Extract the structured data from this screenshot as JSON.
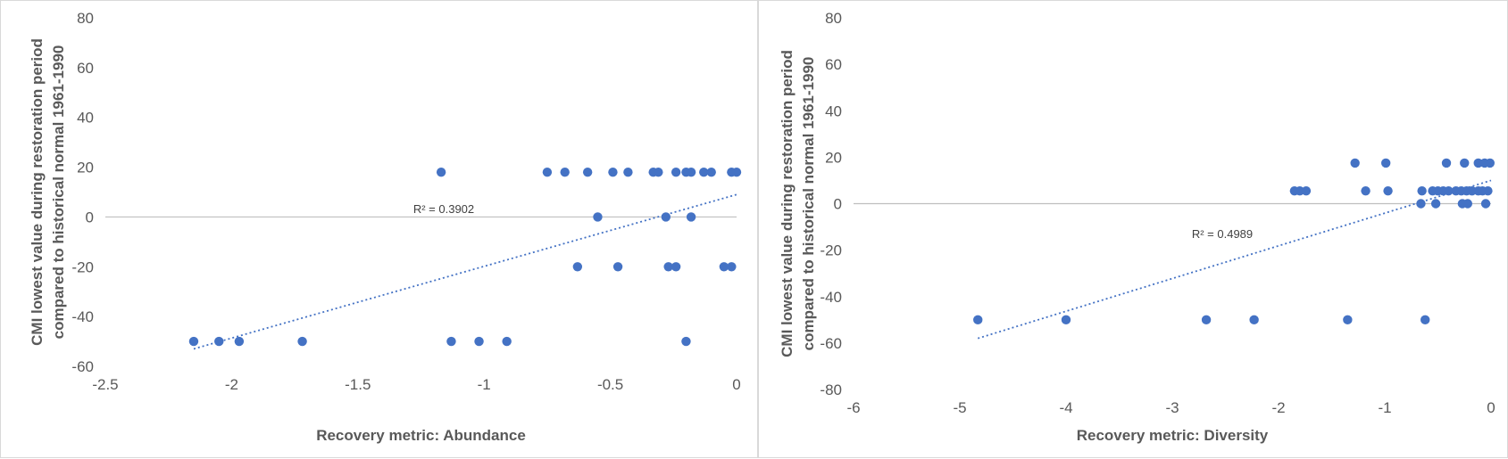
{
  "chart_data": [
    {
      "type": "scatter",
      "title": "",
      "xlabel": "Recovery metric: Abundance",
      "ylabel": "CMI lowest value during restoration period compared to historical normal 1961-1990",
      "xlim": [
        -2.5,
        0
      ],
      "ylim": [
        -60,
        80
      ],
      "xticks": [
        -2.5,
        -2,
        -1.5,
        -1,
        -0.5,
        0
      ],
      "yticks": [
        -60,
        -40,
        -20,
        0,
        20,
        40,
        60,
        80
      ],
      "x_tick_labels": [
        "-2.5",
        "-2",
        "-1.5",
        "-1",
        "-0.5",
        "0"
      ],
      "y_tick_labels": [
        "-60",
        "-40",
        "-20",
        "0",
        "20",
        "40",
        "60",
        "80"
      ],
      "grid": "horizontal zero line only",
      "marker_color": "#4472c4",
      "trendline": {
        "type": "linear",
        "style": "dotted",
        "color": "#4472c4",
        "x_range": [
          -2.15,
          0
        ],
        "y_range": [
          -53,
          9
        ]
      },
      "annotation": "R² = 0.3902",
      "points": [
        {
          "x": -2.15,
          "y": -50
        },
        {
          "x": -2.05,
          "y": -50
        },
        {
          "x": -1.97,
          "y": -50
        },
        {
          "x": -1.72,
          "y": -50
        },
        {
          "x": -1.13,
          "y": -50
        },
        {
          "x": -1.02,
          "y": -50
        },
        {
          "x": -0.91,
          "y": -50
        },
        {
          "x": -0.2,
          "y": -50
        },
        {
          "x": -1.17,
          "y": 18
        },
        {
          "x": -0.75,
          "y": 18
        },
        {
          "x": -0.68,
          "y": 18
        },
        {
          "x": -0.59,
          "y": 18
        },
        {
          "x": -0.49,
          "y": 18
        },
        {
          "x": -0.43,
          "y": 18
        },
        {
          "x": -0.33,
          "y": 18
        },
        {
          "x": -0.31,
          "y": 18
        },
        {
          "x": -0.24,
          "y": 18
        },
        {
          "x": -0.2,
          "y": 18
        },
        {
          "x": -0.18,
          "y": 18
        },
        {
          "x": -0.13,
          "y": 18
        },
        {
          "x": -0.1,
          "y": 18
        },
        {
          "x": -0.02,
          "y": 18
        },
        {
          "x": 0,
          "y": 18
        },
        {
          "x": -0.55,
          "y": 0
        },
        {
          "x": -0.28,
          "y": 0
        },
        {
          "x": -0.18,
          "y": 0
        },
        {
          "x": -0.63,
          "y": -20
        },
        {
          "x": -0.47,
          "y": -20
        },
        {
          "x": -0.27,
          "y": -20
        },
        {
          "x": -0.24,
          "y": -20
        },
        {
          "x": -0.05,
          "y": -20
        },
        {
          "x": -0.02,
          "y": -20
        }
      ]
    },
    {
      "type": "scatter",
      "title": "",
      "xlabel": "Recovery metric: Diversity",
      "ylabel": "CMI lowest value during restoration period compared to historical normal 1961-1990",
      "xlim": [
        -6,
        0
      ],
      "ylim": [
        -80,
        80
      ],
      "xticks": [
        -6,
        -5,
        -4,
        -3,
        -2,
        -1,
        0
      ],
      "yticks": [
        -80,
        -60,
        -40,
        -20,
        0,
        20,
        40,
        60,
        80
      ],
      "x_tick_labels": [
        "-6",
        "-5",
        "-4",
        "-3",
        "-2",
        "-1",
        "0"
      ],
      "y_tick_labels": [
        "-80",
        "-60",
        "-40",
        "-20",
        "0",
        "20",
        "40",
        "60",
        "80"
      ],
      "grid": "horizontal zero line only",
      "marker_color": "#4472c4",
      "trendline": {
        "type": "linear",
        "style": "dotted",
        "color": "#4472c4",
        "x_range": [
          -4.83,
          0
        ],
        "y_range": [
          -58,
          10
        ]
      },
      "annotation": "R² = 0.4989",
      "points": [
        {
          "x": -4.83,
          "y": -50
        },
        {
          "x": -4.0,
          "y": -50
        },
        {
          "x": -2.68,
          "y": -50
        },
        {
          "x": -2.23,
          "y": -50
        },
        {
          "x": -1.35,
          "y": -50
        },
        {
          "x": -0.62,
          "y": -50
        },
        {
          "x": -1.28,
          "y": 17.5
        },
        {
          "x": -0.99,
          "y": 17.5
        },
        {
          "x": -0.42,
          "y": 17.5
        },
        {
          "x": -0.25,
          "y": 17.5
        },
        {
          "x": -0.12,
          "y": 17.5
        },
        {
          "x": -0.06,
          "y": 17.5
        },
        {
          "x": -0.01,
          "y": 17.5
        },
        {
          "x": -1.85,
          "y": 5.5
        },
        {
          "x": -1.8,
          "y": 5.5
        },
        {
          "x": -1.74,
          "y": 5.5
        },
        {
          "x": -1.18,
          "y": 5.5
        },
        {
          "x": -0.97,
          "y": 5.5
        },
        {
          "x": -0.65,
          "y": 5.5
        },
        {
          "x": -0.55,
          "y": 5.5
        },
        {
          "x": -0.5,
          "y": 5.5
        },
        {
          "x": -0.45,
          "y": 5.5
        },
        {
          "x": -0.4,
          "y": 5.5
        },
        {
          "x": -0.33,
          "y": 5.5
        },
        {
          "x": -0.28,
          "y": 5.5
        },
        {
          "x": -0.23,
          "y": 5.5
        },
        {
          "x": -0.18,
          "y": 5.5
        },
        {
          "x": -0.12,
          "y": 5.5
        },
        {
          "x": -0.08,
          "y": 5.5
        },
        {
          "x": -0.03,
          "y": 5.5
        },
        {
          "x": -0.66,
          "y": 0
        },
        {
          "x": -0.52,
          "y": 0
        },
        {
          "x": -0.27,
          "y": 0
        },
        {
          "x": -0.22,
          "y": 0
        },
        {
          "x": -0.05,
          "y": 0
        }
      ]
    }
  ]
}
